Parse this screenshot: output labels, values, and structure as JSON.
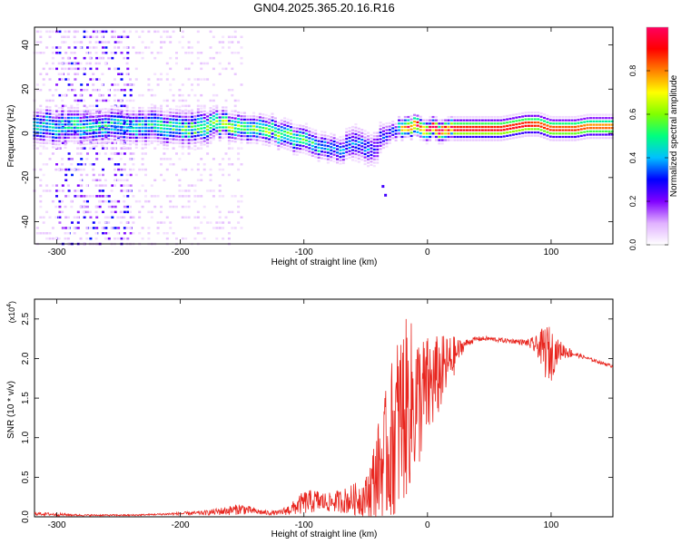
{
  "figure": {
    "title": "GN04.2025.365.20.16.R16"
  },
  "chart_data": [
    {
      "type": "heatmap",
      "name": "spectrogram",
      "xlabel": "Height of straight line (km)",
      "ylabel": "Frequency (Hz)",
      "xlim": [
        -318,
        150
      ],
      "ylim": [
        -50,
        48
      ],
      "xticks": [
        -300,
        -200,
        -100,
        0,
        100
      ],
      "yticks": [
        -40,
        -20,
        0,
        20,
        40
      ],
      "colorbar": {
        "label": "Normalized spectral amplitude",
        "range": [
          0.0,
          1.0
        ],
        "ticks": [
          0.0,
          0.2,
          0.4,
          0.6,
          0.8
        ],
        "tick_labels": [
          "0.0",
          "0.2",
          "0.4",
          "0.6",
          "0.8"
        ],
        "colormap": [
          "#ffffff",
          "#e0b0ff",
          "#8000ff",
          "#0000ff",
          "#00c0ff",
          "#00ff80",
          "#80ff00",
          "#ffff00",
          "#ff8000",
          "#ff0000",
          "#ff0060"
        ]
      },
      "ridge": {
        "x": [
          -318,
          -300,
          -280,
          -260,
          -240,
          -220,
          -200,
          -190,
          -180,
          -170,
          -160,
          -150,
          -140,
          -130,
          -120,
          -110,
          -100,
          -90,
          -80,
          -70,
          -60,
          -50,
          -45,
          -40,
          -35,
          -30,
          -25,
          -20,
          -15,
          -10,
          -5,
          0,
          10,
          20,
          40,
          60,
          80,
          90,
          100,
          110,
          120,
          130,
          150
        ],
        "y": [
          4,
          3,
          3,
          4,
          3,
          3,
          2,
          2,
          3,
          4,
          4,
          3,
          3,
          2,
          0,
          -2,
          -3,
          -5,
          -6,
          -8,
          -4,
          -6,
          -8,
          -5,
          0,
          1,
          2,
          2,
          2,
          3,
          2,
          2,
          2,
          2,
          2,
          2,
          4,
          4,
          2,
          2,
          2,
          3,
          3
        ],
        "peak_amplitude": [
          0.45,
          0.45,
          0.45,
          0.45,
          0.45,
          0.45,
          0.5,
          0.5,
          0.55,
          0.6,
          0.6,
          0.55,
          0.55,
          0.55,
          0.55,
          0.55,
          0.5,
          0.45,
          0.4,
          0.35,
          0.35,
          0.35,
          0.3,
          0.3,
          0.3,
          0.3,
          0.35,
          0.75,
          0.85,
          0.9,
          0.9,
          0.92,
          0.95,
          0.95,
          0.95,
          0.95,
          0.95,
          0.9,
          0.9,
          0.9,
          0.9,
          0.85,
          0.85
        ],
        "half_width": [
          5,
          5,
          5,
          5,
          5,
          5,
          5,
          5,
          5,
          4,
          4,
          4,
          4,
          4,
          4,
          4,
          4,
          4,
          4,
          4,
          5,
          5,
          5,
          5,
          4,
          3,
          3,
          3,
          3,
          3,
          3,
          3,
          3,
          3,
          3,
          3,
          3,
          3,
          3,
          3,
          3,
          3,
          3
        ]
      },
      "scatter_bands": [
        {
          "x_range": [
            -300,
            -240
          ],
          "y_range": [
            -50,
            48
          ],
          "amplitude": 0.2
        },
        {
          "x_range": [
            -318,
            -150
          ],
          "y_range": [
            -50,
            48
          ],
          "amplitude": 0.05
        }
      ],
      "features": [
        {
          "x": [
            -36,
            -34
          ],
          "y": [
            -24,
            -28
          ],
          "amplitude": 0.25
        }
      ]
    },
    {
      "type": "line",
      "name": "snr",
      "xlabel": "Height of straight line (km)",
      "ylabel": "SNR (10 * v/v)",
      "y_multiplier_label": "(x10",
      "y_multiplier_exp": "4",
      "y_multiplier_close": ")",
      "xlim": [
        -318,
        150
      ],
      "ylim": [
        0.0,
        2.75
      ],
      "xticks": [
        -300,
        -200,
        -100,
        0,
        100
      ],
      "yticks": [
        0.0,
        0.5,
        1.0,
        1.5,
        2.0,
        2.5
      ],
      "ytick_labels": [
        "0.0",
        "0.5",
        "1.0",
        "1.5",
        "2.0",
        "2.5"
      ],
      "color": "#e8261f",
      "series": [
        {
          "x": [
            -318,
            -300,
            -280,
            -260,
            -240,
            -220,
            -200,
            -180,
            -160,
            -150,
            -140,
            -130,
            -120,
            -110,
            -100,
            -90,
            -80,
            -70,
            -60,
            -50,
            -45,
            -40,
            -35,
            -30,
            -25,
            -20,
            -15,
            -10,
            -5,
            0,
            5,
            10,
            15,
            20,
            25,
            30,
            35,
            40,
            50,
            60,
            70,
            80,
            90,
            95,
            100,
            105,
            110,
            120,
            130,
            140,
            150
          ],
          "y": [
            0.04,
            0.03,
            0.02,
            0.02,
            0.02,
            0.03,
            0.04,
            0.05,
            0.08,
            0.1,
            0.07,
            0.05,
            0.05,
            0.1,
            0.18,
            0.2,
            0.18,
            0.2,
            0.22,
            0.25,
            0.4,
            0.6,
            0.7,
            0.9,
            1.1,
            1.3,
            1.4,
            1.45,
            1.5,
            1.6,
            1.7,
            1.8,
            1.9,
            2.0,
            2.1,
            2.18,
            2.22,
            2.25,
            2.25,
            2.23,
            2.22,
            2.2,
            2.15,
            2.1,
            2.05,
            2.1,
            2.1,
            2.05,
            2.0,
            1.95,
            1.9
          ],
          "noise_amplitude": [
            0.02,
            0.02,
            0.01,
            0.01,
            0.01,
            0.01,
            0.02,
            0.03,
            0.06,
            0.07,
            0.04,
            0.03,
            0.03,
            0.08,
            0.15,
            0.15,
            0.12,
            0.15,
            0.2,
            0.25,
            0.45,
            0.6,
            0.8,
            1.0,
            1.2,
            1.2,
            1.1,
            1.0,
            0.8,
            0.7,
            0.6,
            0.5,
            0.4,
            0.3,
            0.15,
            0.06,
            0.04,
            0.03,
            0.03,
            0.03,
            0.03,
            0.04,
            0.15,
            0.35,
            0.35,
            0.15,
            0.1,
            0.03,
            0.02,
            0.02,
            0.02
          ]
        }
      ]
    }
  ]
}
